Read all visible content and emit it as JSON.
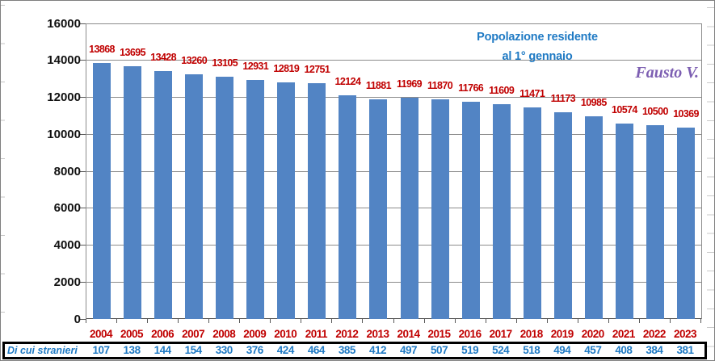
{
  "chart_data": {
    "type": "bar",
    "title": "Popolazione residente al 1° gennaio",
    "title_lines": [
      "Popolazione residente",
      "al 1° gennaio"
    ],
    "signature": "Fausto V.",
    "categories": [
      "2004",
      "2005",
      "2006",
      "2007",
      "2008",
      "2009",
      "2010",
      "2011",
      "2012",
      "2013",
      "2014",
      "2015",
      "2016",
      "2017",
      "2018",
      "2019",
      "2020",
      "2021",
      "2022",
      "2023"
    ],
    "series": [
      {
        "name": "Popolazione residente al 1° gennaio",
        "values": [
          13868,
          13695,
          13428,
          13260,
          13105,
          12931,
          12819,
          12751,
          12124,
          11881,
          11969,
          11870,
          11766,
          11609,
          11471,
          11173,
          10985,
          10574,
          10500,
          10369
        ]
      },
      {
        "name": "Di cui stranieri",
        "values": [
          107,
          138,
          144,
          154,
          330,
          376,
          424,
          464,
          385,
          412,
          497,
          507,
          519,
          524,
          518,
          494,
          457,
          408,
          384,
          381
        ]
      }
    ],
    "foreigners_row_label": "Di cui stranieri",
    "ylim": [
      0,
      16000
    ],
    "yticks": [
      0,
      2000,
      4000,
      6000,
      8000,
      10000,
      12000,
      14000,
      16000
    ],
    "grid": true,
    "legend": "none",
    "colors": {
      "bar": "#5284C4",
      "value_label": "#C00000",
      "year_label": "#C00000",
      "title": "#1F7AC4",
      "foreigners_text": "#1F7AC4",
      "signature": "#7D5FB2",
      "gridline": "#8C8C8C"
    }
  }
}
